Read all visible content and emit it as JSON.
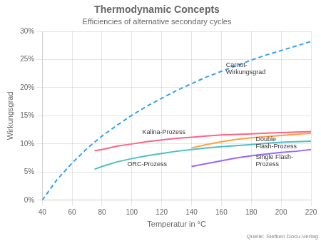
{
  "chart_data": {
    "type": "line",
    "title": "Thermodynamic Concepts",
    "subtitle": "Efficiencies of alternative secondary cycles",
    "xlabel": "Temperatur in °C",
    "ylabel": "Wirkungsgrad",
    "source": "Quelle: Siefken Docu-Verlag",
    "xlim": [
      40,
      220
    ],
    "ylim": [
      0,
      0.3
    ],
    "xticks": [
      40,
      60,
      80,
      100,
      120,
      140,
      160,
      180,
      200,
      220
    ],
    "yticks": [
      {
        "value": 0.0,
        "label": "0%"
      },
      {
        "value": 0.05,
        "label": "5%"
      },
      {
        "value": 0.1,
        "label": "10%"
      },
      {
        "value": 0.15,
        "label": "15%"
      },
      {
        "value": 0.2,
        "label": "20%"
      },
      {
        "value": 0.25,
        "label": "25%"
      },
      {
        "value": 0.3,
        "label": "30%"
      }
    ],
    "grid": true,
    "series": [
      {
        "line_style": "dashed",
        "x": [
          40,
          50,
          60,
          70,
          80,
          90,
          100,
          110,
          120,
          130,
          140,
          150,
          160,
          170,
          180,
          190,
          200,
          210,
          220
        ],
        "values": [
          0.0,
          0.037,
          0.066,
          0.092,
          0.114,
          0.133,
          0.151,
          0.167,
          0.181,
          0.195,
          0.207,
          0.219,
          0.229,
          0.239,
          0.249,
          0.258,
          0.266,
          0.274,
          0.282
        ]
      },
      {
        "line_style": "solid",
        "x": [
          75,
          80,
          90,
          100,
          110,
          120,
          130,
          140,
          150,
          160,
          170,
          180,
          190,
          200,
          210,
          220
        ],
        "values": [
          0.088,
          0.09,
          0.096,
          0.1,
          0.104,
          0.107,
          0.11,
          0.112,
          0.114,
          0.116,
          0.117,
          0.118,
          0.119,
          0.12,
          0.121,
          0.122
        ]
      },
      {
        "line_style": "solid",
        "x": [
          75,
          80,
          90,
          100,
          110,
          120,
          130,
          140,
          150,
          160,
          170,
          180,
          190,
          200,
          210,
          220
        ],
        "values": [
          0.055,
          0.06,
          0.068,
          0.074,
          0.079,
          0.083,
          0.087,
          0.09,
          0.093,
          0.095,
          0.097,
          0.099,
          0.101,
          0.103,
          0.104,
          0.105
        ]
      },
      {
        "line_style": "solid",
        "x": [
          140,
          150,
          160,
          170,
          180,
          190,
          200,
          210,
          220
        ],
        "values": [
          0.093,
          0.099,
          0.104,
          0.108,
          0.111,
          0.113,
          0.115,
          0.117,
          0.119
        ]
      },
      {
        "line_style": "solid",
        "x": [
          140,
          150,
          160,
          170,
          180,
          190,
          200,
          210,
          220
        ],
        "values": [
          0.06,
          0.065,
          0.07,
          0.075,
          0.079,
          0.082,
          0.085,
          0.087,
          0.09
        ]
      }
    ],
    "annotations": [
      {
        "text": "Carnot-\nWirkungsgrad",
        "x": 163,
        "y": 0.245
      },
      {
        "text": "Kalina-Prozess",
        "x": 107,
        "y": 0.1155
      },
      {
        "text": "ORC-Prozess",
        "x": 97,
        "y": 0.07
      },
      {
        "text": "Double\nFlash-Prozess",
        "x": 183,
        "y": 0.114
      },
      {
        "text": "Single Flash-\nProzess",
        "x": 183,
        "y": 0.082
      }
    ]
  }
}
